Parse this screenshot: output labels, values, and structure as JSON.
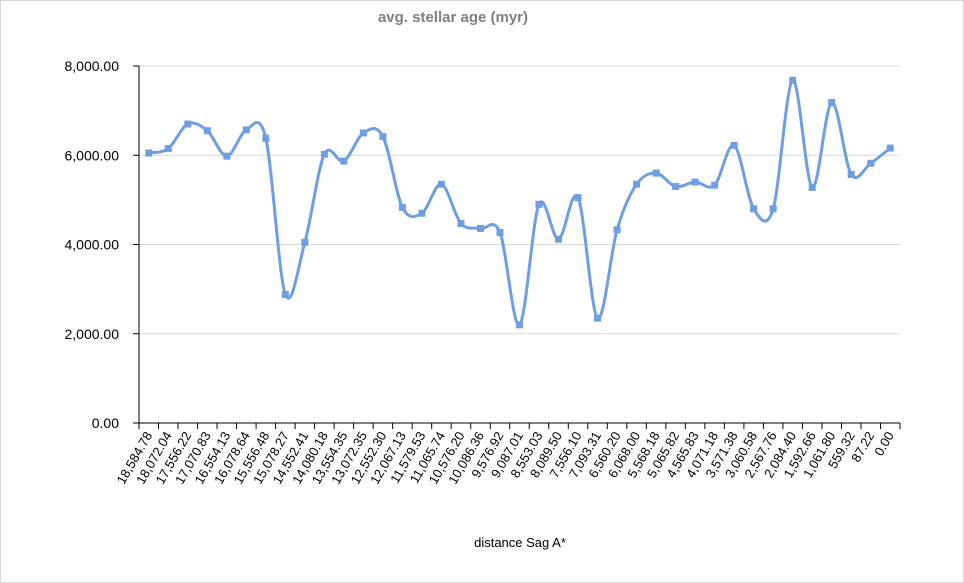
{
  "chart_data": {
    "type": "line",
    "title": "avg. stellar age (myr)",
    "xlabel": "distance Sag A*",
    "ylabel": "",
    "ylim": [
      0,
      8000
    ],
    "yticks": [
      "0.00",
      "2,000.00",
      "4,000.00",
      "6,000.00",
      "8,000.00"
    ],
    "ytick_values": [
      0,
      2000,
      4000,
      6000,
      8000
    ],
    "grid": true,
    "smooth": true,
    "line_color": "#6f9fe2",
    "categories": [
      "18,584.78",
      "18,072.04",
      "17,556.22",
      "17,070.83",
      "16,554.13",
      "16,078.64",
      "15,556.48",
      "15,078.27",
      "14,552.41",
      "14,080.18",
      "13,554.35",
      "13,072.35",
      "12,552.30",
      "12,067.13",
      "11,579.53",
      "11,065.74",
      "10,576.20",
      "10,086.36",
      "9,576.92",
      "9,087.01",
      "8,553.03",
      "8,089.50",
      "7,556.10",
      "7,093.31",
      "6,560.20",
      "6,068.00",
      "5,568.18",
      "5,065.82",
      "4,565.83",
      "4,071.18",
      "3,571.38",
      "3,060.58",
      "2,567.76",
      "2,084.40",
      "1,592.66",
      "1,061.80",
      "559.32",
      "87.22",
      "0.00"
    ],
    "series": [
      {
        "values": [
          6050,
          6150,
          6700,
          6550,
          5980,
          6570,
          6380,
          2880,
          4050,
          6020,
          5870,
          6500,
          6420,
          4830,
          4700,
          5350,
          4470,
          4360,
          4270,
          2200,
          4900,
          4120,
          5050,
          2350,
          4330,
          5350,
          5600,
          5300,
          5400,
          5330,
          6220,
          4800,
          4800,
          7680,
          5280,
          7180,
          5570,
          5820,
          6160
        ]
      }
    ]
  }
}
